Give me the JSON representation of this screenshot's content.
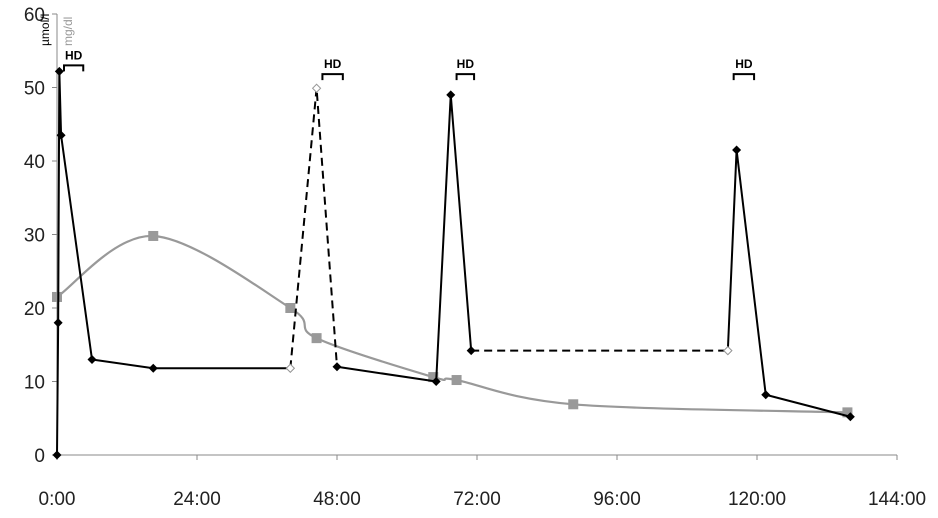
{
  "chart_data": {
    "type": "line",
    "xlim": [
      0,
      144
    ],
    "ylim": [
      0,
      60
    ],
    "xticks": [
      0,
      24,
      48,
      72,
      96,
      120,
      144
    ],
    "xtick_labels": [
      "0:00",
      "24:00",
      "48:00",
      "72:00",
      "96:00",
      "120:00",
      "144:00"
    ],
    "yticks": [
      0,
      10,
      20,
      30,
      40,
      50,
      60
    ],
    "ytick_labels": [
      "0",
      "10",
      "20",
      "30",
      "40",
      "50",
      "60"
    ],
    "y_units": [
      {
        "label": "µmol/l",
        "color": "#000000"
      },
      {
        "label": "mg/dl",
        "color": "#999999"
      }
    ],
    "grid": false,
    "series": [
      {
        "color": "#999999",
        "style": "smooth",
        "marker": "square",
        "points": [
          [
            0,
            21.5
          ],
          [
            16.5,
            29.8
          ],
          [
            40,
            20.0
          ],
          [
            44.5,
            15.9
          ],
          [
            64.5,
            10.6
          ],
          [
            68.5,
            10.2
          ],
          [
            88.5,
            6.9
          ],
          [
            135.5,
            5.8
          ]
        ]
      },
      {
        "color": "#000000",
        "style": "solid",
        "marker": "diamond",
        "segments": [
          [
            [
              0,
              0
            ],
            [
              0.2,
              18
            ],
            [
              0.4,
              52.2
            ],
            [
              0.7,
              43.5
            ],
            [
              6,
              13.0
            ],
            [
              16.5,
              11.8
            ],
            [
              40,
              11.8
            ]
          ],
          [
            [
              48,
              12.0
            ],
            [
              65,
              10.0
            ],
            [
              67.5,
              49.0
            ],
            [
              71,
              14.2
            ]
          ],
          [
            [
              115,
              14.2
            ],
            [
              116.5,
              41.5
            ],
            [
              121.5,
              8.2
            ],
            [
              136,
              5.2
            ]
          ]
        ]
      },
      {
        "color": "#000000",
        "style": "dashed",
        "marker": "open-diamond",
        "segments": [
          [
            [
              40,
              11.8
            ],
            [
              44.5,
              49.9
            ],
            [
              48,
              12.0
            ]
          ],
          [
            [
              71,
              14.2
            ],
            [
              115,
              14.2
            ]
          ]
        ],
        "open_markers": [
          [
            40,
            11.8
          ],
          [
            44.5,
            49.9
          ],
          [
            115,
            14.2
          ]
        ]
      }
    ],
    "annotations": [
      {
        "label": "HD",
        "bracket": [
          1.2,
          4.5
        ],
        "y": 52.2
      },
      {
        "label": "HD",
        "bracket": [
          45.5,
          49
        ],
        "y": 51.0
      },
      {
        "label": "HD",
        "bracket": [
          68.5,
          71.5
        ],
        "y": 51.0
      },
      {
        "label": "HD",
        "bracket": [
          116,
          119.5
        ],
        "y": 51.0
      }
    ]
  }
}
